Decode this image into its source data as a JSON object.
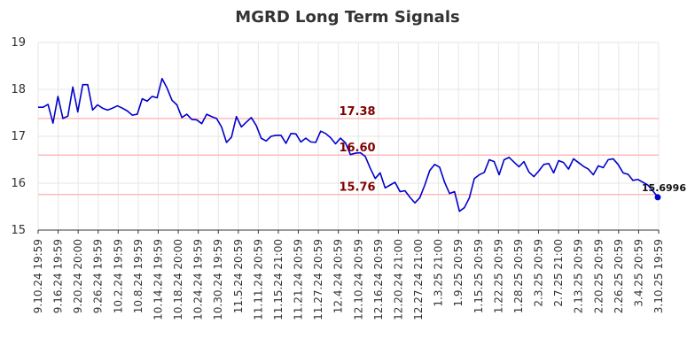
{
  "chart_data": {
    "type": "line",
    "title": "MGRD Long Term Signals",
    "xlabel": "",
    "ylabel": "",
    "ylim": [
      15,
      19
    ],
    "yticks": [
      15,
      16,
      17,
      18,
      19
    ],
    "grid": true,
    "legend": "none",
    "x_ticks": [
      "9.10.24 19:59",
      "9.16.24 19:59",
      "9.20.24 20:00",
      "9.26.24 19:59",
      "10.2.24 19:59",
      "10.8.24 19:59",
      "10.14.24 19:59",
      "10.18.24 20:00",
      "10.24.24 19:59",
      "10.30.24 19:59",
      "11.5.24 20:59",
      "11.11.24 20:59",
      "11.15.24 21:00",
      "11.21.24 20:59",
      "11.27.24 20:59",
      "12.4.24 20:59",
      "12.10.24 20:59",
      "12.16.24 20:59",
      "12.20.24 21:00",
      "12.27.24 21:00",
      "1.3.25 21:00",
      "1.9.25 20:59",
      "1.15.25 20:59",
      "1.22.25 20:59",
      "1.28.25 20:59",
      "2.3.25 20:59",
      "2.7.25 21:00",
      "2.13.25 20:59",
      "2.20.25 20:59",
      "2.26.25 20:59",
      "3.4.25 20:59",
      "3.10.25 19:59"
    ],
    "series": [
      {
        "color": "#0000cc",
        "values": [
          17.62,
          17.62,
          17.68,
          17.28,
          17.85,
          17.38,
          17.43,
          18.05,
          17.52,
          18.1,
          18.1,
          17.56,
          17.67,
          17.6,
          17.56,
          17.6,
          17.65,
          17.6,
          17.54,
          17.45,
          17.47,
          17.8,
          17.75,
          17.85,
          17.82,
          18.23,
          18.03,
          17.77,
          17.67,
          17.4,
          17.47,
          17.36,
          17.35,
          17.27,
          17.47,
          17.42,
          17.38,
          17.2,
          16.87,
          16.98,
          17.42,
          17.2,
          17.3,
          17.4,
          17.23,
          16.96,
          16.9,
          17.0,
          17.02,
          17.02,
          16.85,
          17.06,
          17.05,
          16.88,
          16.96,
          16.88,
          16.87,
          17.11,
          17.06,
          16.97,
          16.84,
          16.96,
          16.86,
          16.61,
          16.64,
          16.65,
          16.57,
          16.32,
          16.1,
          16.22,
          15.9,
          15.96,
          16.02,
          15.82,
          15.84,
          15.7,
          15.58,
          15.69,
          15.96,
          16.27,
          16.4,
          16.34,
          16.02,
          15.78,
          15.82,
          15.4,
          15.48,
          15.69,
          16.1,
          16.18,
          16.23,
          16.5,
          16.46,
          16.18,
          16.5,
          16.55,
          16.45,
          16.35,
          16.46,
          16.24,
          16.14,
          16.26,
          16.4,
          16.42,
          16.22,
          16.48,
          16.44,
          16.3,
          16.52,
          16.44,
          16.36,
          16.3,
          16.18,
          16.37,
          16.33,
          16.5,
          16.52,
          16.4,
          16.22,
          16.19,
          16.06,
          16.08,
          16.02,
          15.96,
          15.84,
          15.7
        ]
      }
    ],
    "reference_lines": [
      {
        "value": 17.38,
        "label": "17.38"
      },
      {
        "value": 16.6,
        "label": "16.60"
      },
      {
        "value": 15.76,
        "label": "15.76"
      }
    ],
    "reference_line_color": "#ffbbbb",
    "reference_label_color": "#800000",
    "last_value_label": "15.6996",
    "last_value": 15.6996
  }
}
